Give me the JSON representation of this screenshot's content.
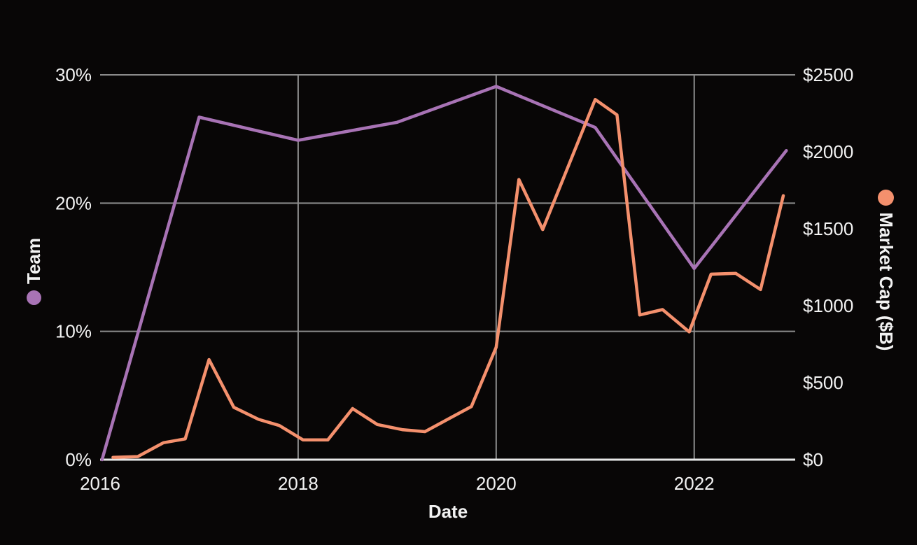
{
  "figure": {
    "background": "#080606",
    "text_color": "#f2f2f2",
    "grid_color": "#8c8c8c",
    "axis_line_color": "#e8e8e8"
  },
  "chart_data": {
    "type": "line",
    "title": "",
    "xlabel": "Date",
    "grid": true,
    "x_range": [
      2016,
      2023.02
    ],
    "x_ticks": [
      2016,
      2018,
      2020,
      2022
    ],
    "x_tick_labels": [
      "2016",
      "2018",
      "2020",
      "2022"
    ],
    "x_gridline_years": [
      2018,
      2020,
      2022
    ],
    "left_axis": {
      "label": "Team",
      "range": [
        0,
        30
      ],
      "ticks": [
        0,
        10,
        20,
        30
      ],
      "tick_labels": [
        "0%",
        "10%",
        "20%",
        "30%"
      ],
      "gridline_ticks": [
        10,
        20,
        30
      ]
    },
    "right_axis": {
      "label": "Market Cap ($B)",
      "range": [
        0,
        2500
      ],
      "ticks": [
        0,
        500,
        1000,
        1500,
        2000,
        2500
      ],
      "tick_labels": [
        "$0",
        "$500",
        "$1000",
        "$1500",
        "$2000",
        "$2500"
      ]
    },
    "series": [
      {
        "name": "Team",
        "axis": "left",
        "color": "#a873b5",
        "unit": "%",
        "points": [
          [
            2016.02,
            0.0
          ],
          [
            2017.0,
            26.7
          ],
          [
            2018.0,
            24.9
          ],
          [
            2019.0,
            26.3
          ],
          [
            2020.0,
            29.1
          ],
          [
            2021.0,
            25.9
          ],
          [
            2022.0,
            14.9
          ],
          [
            2022.93,
            24.1
          ]
        ]
      },
      {
        "name": "Market Cap ($B)",
        "axis": "right",
        "color": "#f4906d",
        "unit": "$B",
        "points": [
          [
            2016.13,
            15
          ],
          [
            2016.38,
            20
          ],
          [
            2016.64,
            110
          ],
          [
            2016.86,
            135
          ],
          [
            2017.1,
            650
          ],
          [
            2017.35,
            340
          ],
          [
            2017.6,
            262
          ],
          [
            2017.81,
            222
          ],
          [
            2018.05,
            128
          ],
          [
            2018.3,
            128
          ],
          [
            2018.55,
            332
          ],
          [
            2018.8,
            228
          ],
          [
            2019.05,
            195
          ],
          [
            2019.28,
            182
          ],
          [
            2019.75,
            345
          ],
          [
            2020.0,
            730
          ],
          [
            2020.23,
            1820
          ],
          [
            2020.47,
            1495
          ],
          [
            2021.0,
            2340
          ],
          [
            2021.22,
            2240
          ],
          [
            2021.45,
            940
          ],
          [
            2021.68,
            975
          ],
          [
            2021.95,
            830
          ],
          [
            2022.17,
            1205
          ],
          [
            2022.42,
            1210
          ],
          [
            2022.67,
            1105
          ],
          [
            2022.9,
            1715
          ]
        ]
      }
    ]
  }
}
